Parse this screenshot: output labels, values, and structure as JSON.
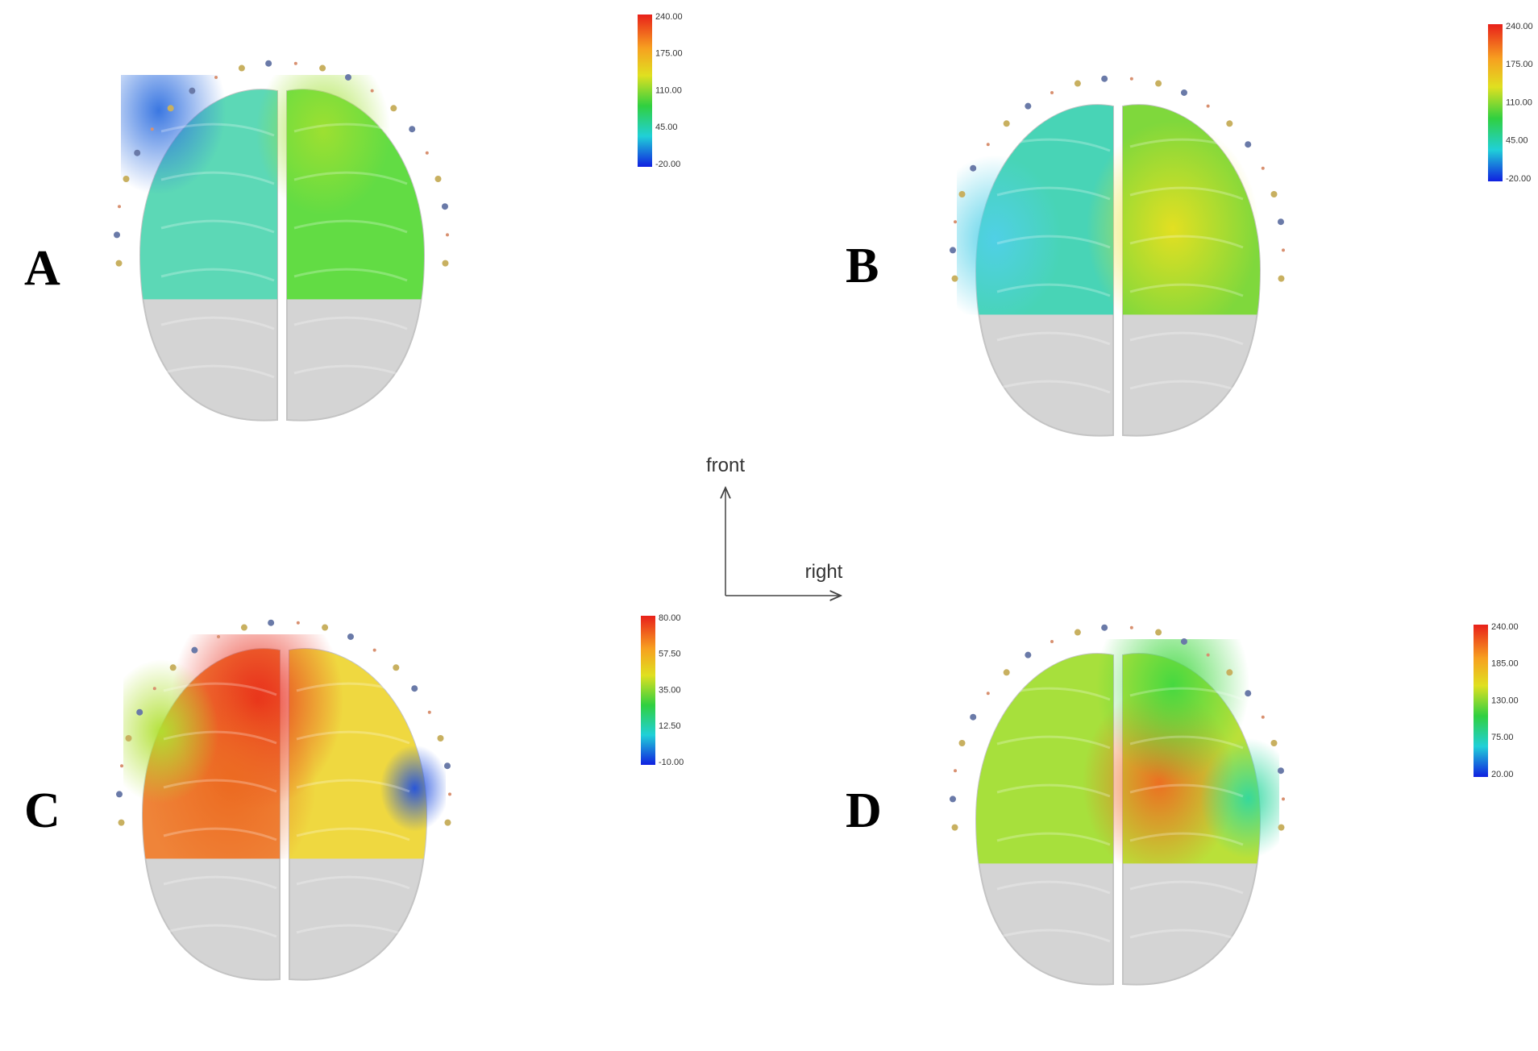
{
  "panels": [
    {
      "label": "A",
      "colorbar": [
        "240.00",
        "175.00",
        "110.00",
        "45.00",
        "-20.00"
      ]
    },
    {
      "label": "B",
      "colorbar": [
        "240.00",
        "175.00",
        "110.00",
        "45.00",
        "-20.00"
      ]
    },
    {
      "label": "C",
      "colorbar": [
        "80.00",
        "57.50",
        "35.00",
        "12.50",
        "-10.00"
      ]
    },
    {
      "label": "D",
      "colorbar": [
        "240.00",
        "185.00",
        "130.00",
        "75.00",
        "20.00"
      ]
    }
  ],
  "orientation": {
    "up": "front",
    "right": "right"
  }
}
